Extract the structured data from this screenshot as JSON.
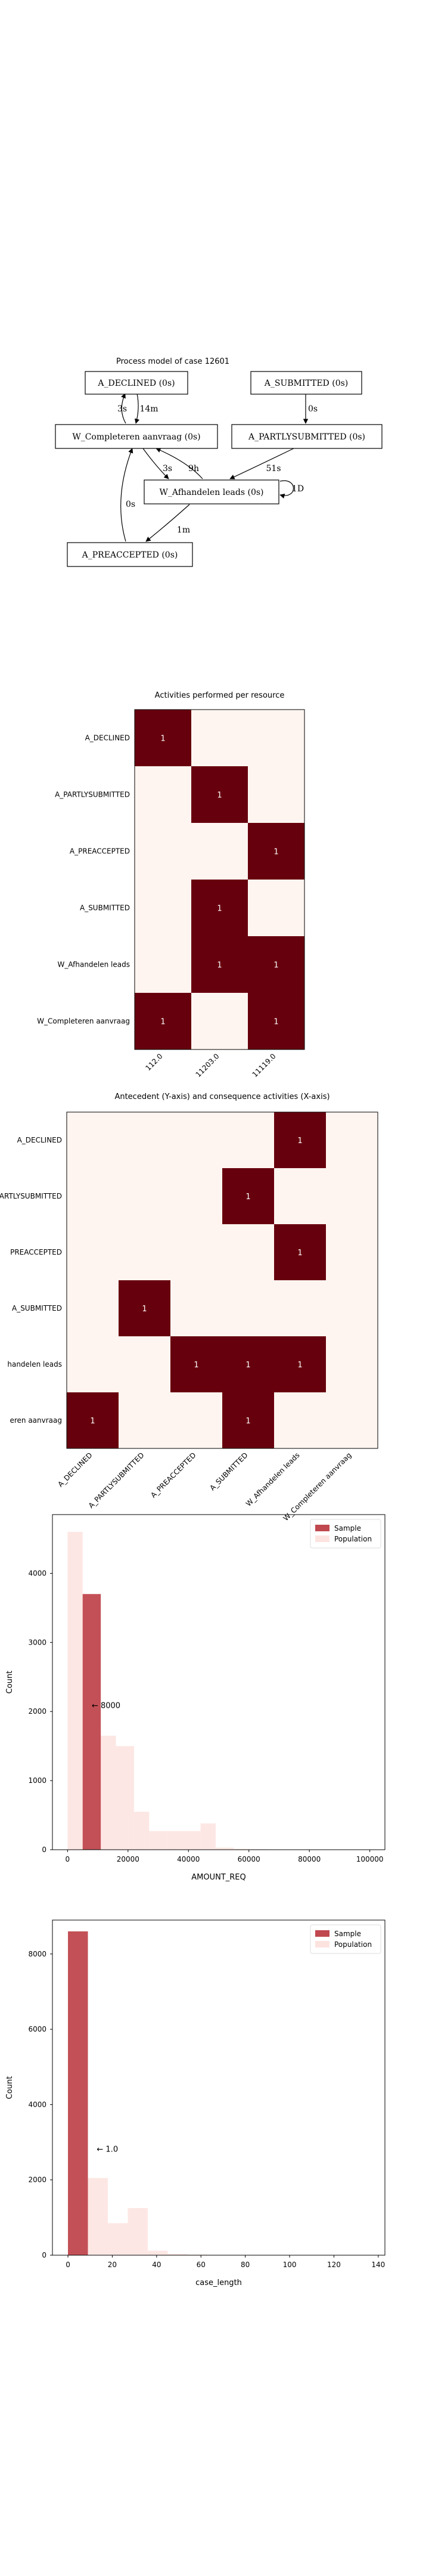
{
  "process_model": {
    "title": "Process model of case 12601",
    "nodes": [
      {
        "id": "declined",
        "label": "A_DECLINED (0s)"
      },
      {
        "id": "submitted",
        "label": "A_SUBMITTED (0s)"
      },
      {
        "id": "wcomp",
        "label": "W_Completeren aanvraag (0s)"
      },
      {
        "id": "partly",
        "label": "A_PARTLYSUBMITTED (0s)"
      },
      {
        "id": "wafh",
        "label": "W_Afhandelen leads (0s)"
      },
      {
        "id": "preacc",
        "label": "A_PREACCEPTED (0s)"
      }
    ],
    "edges": [
      {
        "from": "wcomp",
        "to": "declined",
        "label": "3s"
      },
      {
        "from": "declined",
        "to": "wcomp",
        "label": "14m"
      },
      {
        "from": "submitted",
        "to": "partly",
        "label": "0s"
      },
      {
        "from": "wcomp",
        "to": "wafh",
        "label": "3s"
      },
      {
        "from": "wafh",
        "to": "wcomp",
        "label": "9h"
      },
      {
        "from": "partly",
        "to": "wafh",
        "label": "51s"
      },
      {
        "from": "wafh",
        "to": "wafh",
        "label": "1D"
      },
      {
        "from": "preacc",
        "to": "wcomp",
        "label": "0s"
      },
      {
        "from": "wafh",
        "to": "preacc",
        "label": "1m"
      }
    ]
  },
  "chart_data": [
    {
      "type": "heatmap",
      "title": "Activities performed per resource",
      "x_labels": [
        "112.0",
        "11203.0",
        "11119.0"
      ],
      "y_labels": [
        "A_DECLINED",
        "A_PARTLYSUBMITTED",
        "A_PREACCEPTED",
        "A_SUBMITTED",
        "W_Afhandelen leads",
        "W_Completeren aanvraag"
      ],
      "values": [
        [
          1,
          0,
          0
        ],
        [
          0,
          1,
          0
        ],
        [
          0,
          0,
          1
        ],
        [
          0,
          1,
          0
        ],
        [
          0,
          1,
          1
        ],
        [
          1,
          0,
          1
        ]
      ],
      "colors": {
        "low": "#fff5f0",
        "high": "#67000d"
      }
    },
    {
      "type": "heatmap",
      "title": "Antecedent (Y-axis) and consequence activities (X-axis)",
      "x_labels": [
        "A_DECLINED",
        "A_PARTLYSUBMITTED",
        "A_PREACCEPTED",
        "A_SUBMITTED",
        "W_Afhandelen leads",
        "W_Completeren aanvraag"
      ],
      "y_labels": [
        "A_DECLINED",
        "A_PARTLYSUBMITTED",
        "A_PREACCEPTED",
        "A_SUBMITTED",
        "W_Afhandelen leads",
        "W_Completeren aanvraag"
      ],
      "y_labels_visible": [
        "A_DECLINED",
        "PARTLYSUBMITTED",
        "PREACCEPTED",
        "A_SUBMITTED",
        "handelen leads",
        "eren aanvraag"
      ],
      "values": [
        [
          0,
          0,
          0,
          0,
          1,
          0
        ],
        [
          0,
          0,
          0,
          1,
          0,
          0
        ],
        [
          0,
          0,
          0,
          0,
          1,
          0
        ],
        [
          0,
          1,
          0,
          0,
          0,
          0
        ],
        [
          0,
          0,
          1,
          1,
          1,
          0
        ],
        [
          1,
          0,
          0,
          1,
          0,
          0
        ]
      ],
      "colors": {
        "low": "#fff5f0",
        "high": "#67000d"
      }
    },
    {
      "type": "bar",
      "xlabel": "AMOUNT_REQ",
      "ylabel": "Count",
      "xlim": [
        -5000,
        105000
      ],
      "ylim": [
        0,
        4850
      ],
      "x_ticks": [
        0,
        20000,
        40000,
        60000,
        80000,
        100000
      ],
      "y_ticks": [
        0,
        1000,
        2000,
        3000,
        4000
      ],
      "annotation": {
        "text": "← 8000",
        "x": 8000,
        "y": 2050
      },
      "legend": {
        "position": "top-right"
      },
      "series": [
        {
          "name": "Sample",
          "color": "#c0484f",
          "bins": [
            {
              "x0": 5000,
              "x1": 11000,
              "y": 3700
            }
          ]
        },
        {
          "name": "Population",
          "color": "#fde3df",
          "bins": [
            {
              "x0": 0,
              "x1": 5000,
              "y": 4600
            },
            {
              "x0": 5000,
              "x1": 11000,
              "y": 3700
            },
            {
              "x0": 11000,
              "x1": 16000,
              "y": 1650
            },
            {
              "x0": 16000,
              "x1": 22000,
              "y": 1500
            },
            {
              "x0": 22000,
              "x1": 27000,
              "y": 550
            },
            {
              "x0": 27000,
              "x1": 33000,
              "y": 270
            },
            {
              "x0": 33000,
              "x1": 38000,
              "y": 270
            },
            {
              "x0": 38000,
              "x1": 44000,
              "y": 270
            },
            {
              "x0": 44000,
              "x1": 49000,
              "y": 380
            },
            {
              "x0": 49000,
              "x1": 55000,
              "y": 30
            },
            {
              "x0": 55000,
              "x1": 60000,
              "y": 12
            },
            {
              "x0": 60000,
              "x1": 66000,
              "y": 8
            },
            {
              "x0": 66000,
              "x1": 71000,
              "y": 5
            },
            {
              "x0": 71000,
              "x1": 77000,
              "y": 4
            },
            {
              "x0": 77000,
              "x1": 82000,
              "y": 3
            },
            {
              "x0": 82000,
              "x1": 88000,
              "y": 2
            },
            {
              "x0": 88000,
              "x1": 93000,
              "y": 2
            },
            {
              "x0": 93000,
              "x1": 99000,
              "y": 2
            }
          ]
        }
      ]
    },
    {
      "type": "bar",
      "xlabel": "case_length",
      "ylabel": "Count",
      "xlim": [
        -7,
        143
      ],
      "ylim": [
        0,
        8900
      ],
      "x_ticks": [
        0,
        20,
        40,
        60,
        80,
        100,
        120,
        140
      ],
      "y_ticks": [
        0,
        2000,
        4000,
        6000,
        8000
      ],
      "annotation": {
        "text": "← 1.0",
        "x": 13,
        "y": 2750
      },
      "legend": {
        "position": "top-right"
      },
      "series": [
        {
          "name": "Sample",
          "color": "#c0484f",
          "bins": [
            {
              "x0": 0,
              "x1": 9,
              "y": 8600
            }
          ]
        },
        {
          "name": "Population",
          "color": "#fde3df",
          "bins": [
            {
              "x0": 0,
              "x1": 9,
              "y": 8600
            },
            {
              "x0": 9,
              "x1": 18,
              "y": 2050
            },
            {
              "x0": 18,
              "x1": 27,
              "y": 850
            },
            {
              "x0": 27,
              "x1": 36,
              "y": 1250
            },
            {
              "x0": 36,
              "x1": 45,
              "y": 120
            },
            {
              "x0": 45,
              "x1": 54,
              "y": 30
            },
            {
              "x0": 54,
              "x1": 63,
              "y": 15
            },
            {
              "x0": 63,
              "x1": 72,
              "y": 8
            },
            {
              "x0": 72,
              "x1": 81,
              "y": 5
            },
            {
              "x0": 81,
              "x1": 90,
              "y": 3
            },
            {
              "x0": 90,
              "x1": 99,
              "y": 2
            },
            {
              "x0": 99,
              "x1": 108,
              "y": 2
            },
            {
              "x0": 108,
              "x1": 117,
              "y": 1
            },
            {
              "x0": 117,
              "x1": 126,
              "y": 1
            },
            {
              "x0": 126,
              "x1": 135,
              "y": 1
            }
          ]
        }
      ]
    }
  ]
}
